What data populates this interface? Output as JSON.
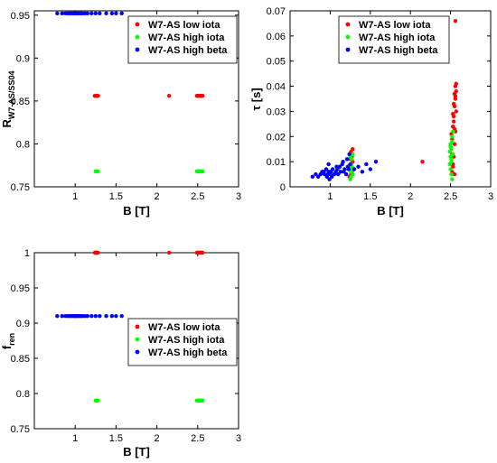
{
  "chart_data": [
    {
      "type": "scatter",
      "xlabel": "B [T]",
      "ylabel": "R",
      "ylabel_sub": "W7-AS/SS04",
      "xlim": [
        0.5,
        3
      ],
      "ylim": [
        0.75,
        0.955
      ],
      "xticks": [
        "1",
        "1.5",
        "2",
        "2.5",
        "3"
      ],
      "yticks": [
        "0.75",
        "0.8",
        "0.85",
        "0.9",
        "0.95"
      ],
      "grid": false,
      "legend_position": "top-right",
      "series": [
        {
          "name": "W7-AS low iota",
          "color": "#ff0000",
          "x": [
            1.24,
            1.25,
            1.26,
            1.27,
            1.28,
            2.15,
            2.49,
            2.5,
            2.51,
            2.52,
            2.53,
            2.54,
            2.55,
            2.56
          ],
          "y": [
            0.856,
            0.856,
            0.856,
            0.856,
            0.856,
            0.856,
            0.856,
            0.856,
            0.856,
            0.856,
            0.856,
            0.856,
            0.856,
            0.856
          ]
        },
        {
          "name": "W7-AS high iota",
          "color": "#00ff00",
          "x": [
            1.25,
            1.26,
            1.27,
            1.28,
            2.49,
            2.5,
            2.51,
            2.52,
            2.53,
            2.54,
            2.55,
            2.56
          ],
          "y": [
            0.768,
            0.768,
            0.768,
            0.768,
            0.768,
            0.768,
            0.768,
            0.768,
            0.768,
            0.768,
            0.768,
            0.768
          ]
        },
        {
          "name": "W7-AS high beta",
          "color": "#0000ff",
          "x": [
            0.78,
            0.84,
            0.88,
            0.91,
            0.93,
            0.95,
            0.97,
            0.99,
            1.0,
            1.01,
            1.03,
            1.05,
            1.07,
            1.09,
            1.12,
            1.15,
            1.2,
            1.25,
            1.3,
            1.38,
            1.45,
            1.5,
            1.57
          ],
          "y": [
            0.952,
            0.952,
            0.952,
            0.952,
            0.952,
            0.952,
            0.952,
            0.952,
            0.952,
            0.952,
            0.952,
            0.952,
            0.952,
            0.952,
            0.952,
            0.952,
            0.952,
            0.952,
            0.952,
            0.952,
            0.952,
            0.952,
            0.952
          ]
        }
      ]
    },
    {
      "type": "scatter",
      "xlabel": "B [T]",
      "ylabel": "τ [s]",
      "xlim": [
        0.5,
        3
      ],
      "ylim": [
        0,
        0.07
      ],
      "xticks": [
        "1",
        "1.5",
        "2",
        "2.5",
        "3"
      ],
      "yticks": [
        "0",
        "0.01",
        "0.02",
        "0.03",
        "0.04",
        "0.05",
        "0.06",
        "0.07"
      ],
      "grid": false,
      "legend_position": "top-right",
      "series": [
        {
          "name": "W7-AS low iota",
          "color": "#ff0000",
          "x": [
            1.24,
            1.25,
            1.26,
            1.27,
            1.28,
            1.25,
            1.26,
            1.27,
            1.24,
            1.28,
            1.26,
            1.25,
            1.27,
            2.15,
            2.5,
            2.51,
            2.52,
            2.53,
            2.54,
            2.55,
            2.56,
            2.57,
            2.55,
            2.54,
            2.56,
            2.53,
            2.52,
            2.55,
            2.56,
            2.54,
            2.57,
            2.53,
            2.55,
            2.56,
            2.54,
            2.52,
            2.55,
            2.57,
            2.53,
            2.56
          ],
          "y": [
            0.013,
            0.011,
            0.009,
            0.012,
            0.015,
            0.007,
            0.005,
            0.008,
            0.004,
            0.01,
            0.014,
            0.013,
            0.006,
            0.01,
            0.016,
            0.021,
            0.019,
            0.024,
            0.028,
            0.032,
            0.036,
            0.041,
            0.037,
            0.033,
            0.04,
            0.029,
            0.013,
            0.023,
            0.035,
            0.026,
            0.03,
            0.009,
            0.017,
            0.022,
            0.012,
            0.006,
            0.005,
            0.038,
            0.008,
            0.066
          ]
        },
        {
          "name": "W7-AS high iota",
          "color": "#00ff00",
          "x": [
            1.25,
            1.26,
            1.27,
            1.28,
            1.25,
            1.26,
            1.27,
            1.28,
            1.26,
            1.27,
            2.49,
            2.5,
            2.51,
            2.52,
            2.53,
            2.5,
            2.51,
            2.52,
            2.53,
            2.5,
            2.51,
            2.52,
            2.49,
            2.5,
            2.51
          ],
          "y": [
            0.012,
            0.009,
            0.007,
            0.005,
            0.003,
            0.004,
            0.011,
            0.013,
            0.006,
            0.008,
            0.009,
            0.012,
            0.015,
            0.018,
            0.022,
            0.007,
            0.005,
            0.02,
            0.013,
            0.016,
            0.01,
            0.003,
            0.014,
            0.017,
            0.011
          ]
        },
        {
          "name": "W7-AS high beta",
          "color": "#0000ff",
          "x": [
            0.78,
            0.82,
            0.85,
            0.88,
            0.9,
            0.92,
            0.93,
            0.95,
            0.96,
            0.97,
            0.98,
            0.99,
            1.0,
            1.01,
            1.02,
            1.03,
            1.05,
            1.07,
            1.09,
            1.1,
            1.12,
            1.13,
            1.15,
            1.17,
            1.18,
            1.2,
            1.22,
            1.23,
            1.24,
            1.25,
            1.3,
            1.35,
            1.4,
            1.45,
            1.5,
            1.57,
            0.98,
            1.08,
            1.16,
            1.21
          ],
          "y": [
            0.004,
            0.005,
            0.004,
            0.005,
            0.006,
            0.006,
            0.005,
            0.007,
            0.004,
            0.005,
            0.006,
            0.003,
            0.005,
            0.006,
            0.004,
            0.007,
            0.005,
            0.006,
            0.007,
            0.005,
            0.008,
            0.006,
            0.009,
            0.006,
            0.007,
            0.005,
            0.008,
            0.007,
            0.013,
            0.009,
            0.007,
            0.008,
            0.006,
            0.009,
            0.007,
            0.01,
            0.009,
            0.008,
            0.01,
            0.011
          ]
        }
      ]
    },
    {
      "type": "scatter",
      "xlabel": "B [T]",
      "ylabel": "f",
      "ylabel_sub": "ren",
      "xlim": [
        0.5,
        3
      ],
      "ylim": [
        0.75,
        1.0
      ],
      "xticks": [
        "1",
        "1.5",
        "2",
        "2.5",
        "3"
      ],
      "yticks": [
        "0.75",
        "0.8",
        "0.85",
        "0.9",
        "0.95",
        "1"
      ],
      "grid": false,
      "legend_position": "right",
      "series": [
        {
          "name": "W7-AS low iota",
          "color": "#ff0000",
          "x": [
            1.24,
            1.25,
            1.26,
            1.27,
            1.28,
            2.15,
            2.49,
            2.5,
            2.51,
            2.52,
            2.53,
            2.54,
            2.55,
            2.56
          ],
          "y": [
            1.0,
            1.0,
            1.0,
            1.0,
            1.0,
            1.0,
            1.0,
            1.0,
            1.0,
            1.0,
            1.0,
            1.0,
            1.0,
            1.0
          ]
        },
        {
          "name": "W7-AS high iota",
          "color": "#00ff00",
          "x": [
            1.25,
            1.26,
            1.27,
            1.28,
            2.49,
            2.5,
            2.51,
            2.52,
            2.53,
            2.54,
            2.55,
            2.56
          ],
          "y": [
            0.79,
            0.79,
            0.79,
            0.79,
            0.79,
            0.79,
            0.79,
            0.79,
            0.79,
            0.79,
            0.79,
            0.79
          ]
        },
        {
          "name": "W7-AS high beta",
          "color": "#0000ff",
          "x": [
            0.78,
            0.84,
            0.88,
            0.91,
            0.93,
            0.95,
            0.97,
            0.99,
            1.0,
            1.01,
            1.03,
            1.05,
            1.07,
            1.09,
            1.12,
            1.15,
            1.2,
            1.25,
            1.3,
            1.38,
            1.45,
            1.5,
            1.57
          ],
          "y": [
            0.91,
            0.91,
            0.91,
            0.91,
            0.91,
            0.91,
            0.91,
            0.91,
            0.91,
            0.91,
            0.91,
            0.91,
            0.91,
            0.91,
            0.91,
            0.91,
            0.91,
            0.91,
            0.91,
            0.91,
            0.91,
            0.91,
            0.91
          ]
        }
      ]
    }
  ]
}
